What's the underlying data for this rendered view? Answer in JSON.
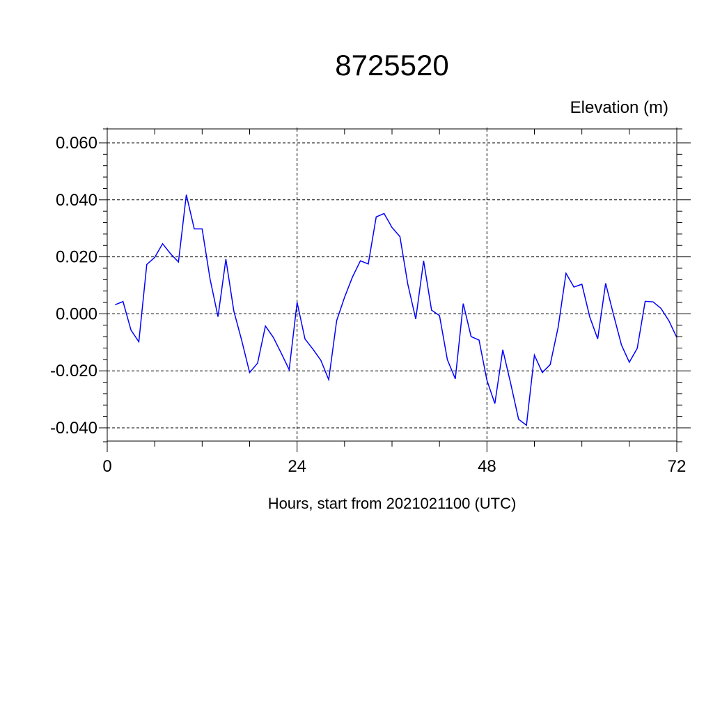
{
  "chart_data": {
    "type": "line",
    "title": "8725520",
    "subtitle": "Elevation (m)",
    "xlabel": "Hours, start from 2021021100 (UTC)",
    "ylabel": "",
    "xlim": [
      0,
      72
    ],
    "ylim": [
      -0.04,
      0.06
    ],
    "xticks": [
      0,
      24,
      48,
      72
    ],
    "xtick_labels": [
      "0",
      "24",
      "48",
      "72"
    ],
    "yticks": [
      -0.04,
      -0.02,
      0.0,
      0.02,
      0.04,
      0.06
    ],
    "ytick_labels": [
      "-0.040",
      "-0.020",
      "0.000",
      "0.020",
      "0.040",
      "0.060"
    ],
    "grid": true,
    "line_color": "#0000ff",
    "series": [
      {
        "x": [
          1,
          2,
          3,
          4,
          5,
          6,
          7,
          8,
          9,
          10,
          11,
          12,
          13,
          14,
          15,
          16,
          17,
          18,
          19,
          20,
          21,
          22,
          23,
          24,
          25,
          26,
          27,
          28,
          29,
          30,
          31,
          32,
          33,
          34,
          35,
          36,
          37,
          38,
          39,
          40,
          41,
          42,
          43,
          44,
          45,
          46,
          47,
          48,
          49,
          50,
          51,
          52,
          53,
          54,
          55,
          56,
          57,
          58,
          59,
          60,
          61,
          62,
          63,
          64,
          65,
          66,
          67,
          68,
          69,
          70,
          71,
          72
        ],
        "values": [
          0.0032,
          0.0043,
          -0.0057,
          -0.0098,
          0.0173,
          0.0198,
          0.0246,
          0.0211,
          0.0182,
          0.0418,
          0.0298,
          0.0298,
          0.0122,
          -0.001,
          0.0192,
          0.001,
          -0.0093,
          -0.0206,
          -0.0173,
          -0.0043,
          -0.0083,
          -0.0138,
          -0.0196,
          0.004,
          -0.0088,
          -0.0124,
          -0.0163,
          -0.0231,
          -0.0024,
          0.0058,
          0.0129,
          0.0186,
          0.0175,
          0.034,
          0.0352,
          0.0303,
          0.0271,
          0.0104,
          -0.0018,
          0.0186,
          0.0013,
          -0.0006,
          -0.0161,
          -0.0228,
          0.0036,
          -0.008,
          -0.0092,
          -0.0233,
          -0.0315,
          -0.0126,
          -0.0244,
          -0.037,
          -0.0391,
          -0.0145,
          -0.0206,
          -0.0178,
          -0.0047,
          0.0142,
          0.0094,
          0.0104,
          -0.0011,
          -0.0088,
          0.0107,
          -0.0003,
          -0.0109,
          -0.017,
          -0.0121,
          0.0044,
          0.0042,
          0.0019,
          -0.0024,
          -0.0083
        ]
      }
    ]
  }
}
